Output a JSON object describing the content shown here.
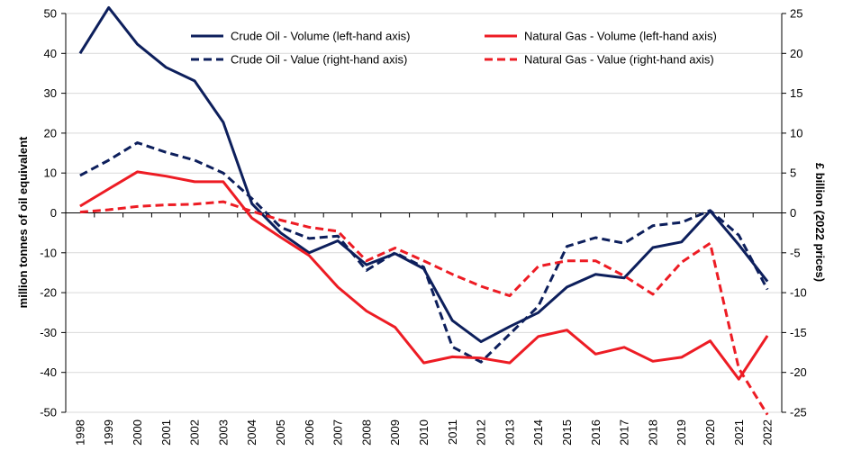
{
  "chart_data": {
    "type": "line",
    "x": [
      "1998",
      "1999",
      "2000",
      "2001",
      "2002",
      "2003",
      "2004",
      "2005",
      "2006",
      "2007",
      "2008",
      "2009",
      "2010",
      "2011",
      "2012",
      "2013",
      "2014",
      "2015",
      "2016",
      "2017",
      "2018",
      "2019",
      "2020",
      "2021",
      "2022"
    ],
    "ylabel": "million tonnes of oil equivalent",
    "y2label": "£ billion (2022 prices)",
    "ylim": [
      -50,
      50
    ],
    "y2lim": [
      -25,
      25
    ],
    "yticks": [
      -50,
      -40,
      -30,
      -20,
      -10,
      0,
      10,
      20,
      30,
      40,
      50
    ],
    "y2ticks": [
      -25,
      -20,
      -15,
      -10,
      -5,
      0,
      5,
      10,
      15,
      20,
      25
    ],
    "grid": "horizontal",
    "legend_position": "top",
    "series": [
      {
        "name": "Crude Oil - Volume (left-hand axis)",
        "axis": "left",
        "color": "#0d1f5c",
        "dash": "solid",
        "values": [
          40,
          51.5,
          42.3,
          36.5,
          33.1,
          22.7,
          2.3,
          -5,
          -10,
          -7,
          -13,
          -10.2,
          -14,
          -27,
          -32.3,
          -28.5,
          -25,
          -18.6,
          -15.4,
          -16.3,
          -8.7,
          -7.3,
          0.5,
          -8,
          -17.2
        ]
      },
      {
        "name": "Crude Oil - Value (right-hand axis)",
        "axis": "right",
        "color": "#0d1f5c",
        "dash": "dashed",
        "values": [
          4.7,
          6.6,
          8.8,
          7.6,
          6.6,
          5.0,
          1.8,
          -1.8,
          -3.2,
          -2.9,
          -7.2,
          -5.0,
          -6.8,
          -16.8,
          -18.7,
          -15.2,
          -11.7,
          -4.2,
          -3.1,
          -3.8,
          -1.6,
          -1.2,
          0.3,
          -2.8,
          -9.6
        ]
      },
      {
        "name": "Natural Gas - Volume (left-hand axis)",
        "axis": "left",
        "color": "#ed1c24",
        "dash": "solid",
        "values": [
          1.7,
          6,
          10.3,
          9.2,
          7.8,
          7.8,
          -1.3,
          -6.1,
          -10.7,
          -18.6,
          -24.6,
          -28.7,
          -37.6,
          -36.1,
          -36.4,
          -37.6,
          -31,
          -29.4,
          -35.4,
          -33.7,
          -37.2,
          -36.2,
          -32.1,
          -41.7,
          -30.8
        ]
      },
      {
        "name": "Natural Gas - Value (right-hand axis)",
        "axis": "right",
        "color": "#ed1c24",
        "dash": "dashed",
        "values": [
          0.1,
          0.4,
          0.8,
          1.0,
          1.1,
          1.4,
          0.2,
          -0.9,
          -1.8,
          -2.3,
          -6.0,
          -4.4,
          -6.0,
          -7.7,
          -9.2,
          -10.4,
          -6.7,
          -6.0,
          -6.0,
          -7.9,
          -10.2,
          -6.2,
          -3.8,
          -19.5,
          -25.3
        ]
      }
    ]
  }
}
